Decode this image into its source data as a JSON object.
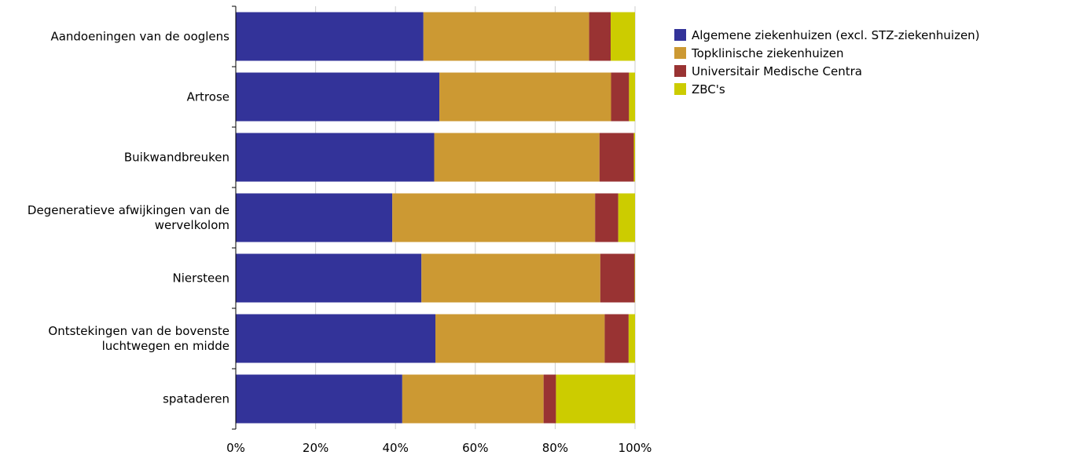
{
  "chart_data": {
    "type": "bar",
    "orientation": "horizontal",
    "stacked": "percent",
    "categories": [
      [
        "Aandoeningen van de ooglens"
      ],
      [
        "Artrose"
      ],
      [
        "Buikwandbreuken"
      ],
      [
        "Degeneratieve afwijkingen van de",
        "wervelkolom"
      ],
      [
        "Niersteen"
      ],
      [
        "Ontstekingen van de bovenste",
        "luchtwegen en midde"
      ],
      [
        "spataderen"
      ]
    ],
    "series": [
      {
        "name": "Algemene ziekenhuizen (excl. STZ-ziekenhuizen)",
        "color": "#333399",
        "values": [
          47,
          51,
          49.7,
          39.2,
          46.5,
          50,
          41.7
        ]
      },
      {
        "name": "Topklinische ziekenhuizen",
        "color": "#CC9933",
        "values": [
          41.5,
          43,
          41.4,
          50.8,
          44.8,
          42.4,
          35.4
        ]
      },
      {
        "name": "Universitair Medische Centra",
        "color": "#993333",
        "values": [
          5.4,
          4.5,
          8.6,
          5.8,
          8.6,
          6,
          3.1
        ]
      },
      {
        "name": "ZBC's",
        "color": "#CCCC00",
        "values": [
          6.1,
          1.5,
          0.3,
          4.2,
          0.1,
          1.6,
          19.8
        ]
      }
    ],
    "xlim": [
      0,
      100
    ],
    "xticks": [
      "0%",
      "20%",
      "40%",
      "60%",
      "80%",
      "100%"
    ],
    "grid": true,
    "legend_position": "right"
  }
}
